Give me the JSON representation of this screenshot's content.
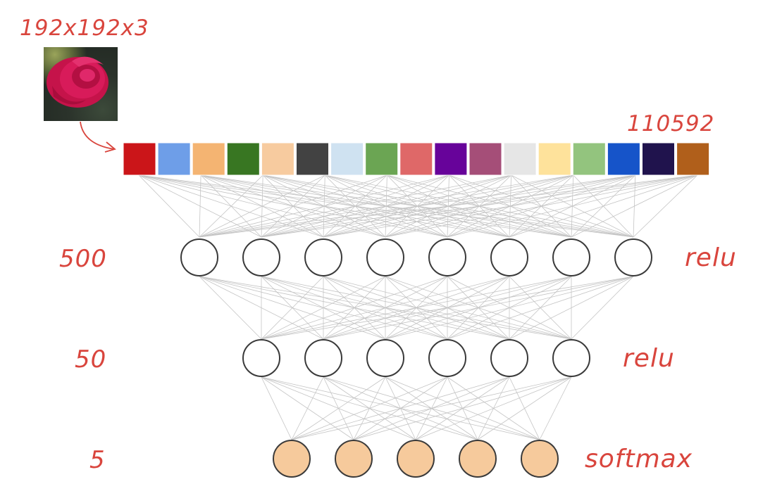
{
  "input": {
    "image_label": "192x192x3",
    "vector_label": "110592",
    "vector_colors": [
      "#cb1519",
      "#6e9ee8",
      "#f4b472",
      "#387622",
      "#f7cb9f",
      "#424242",
      "#cfe2f1",
      "#6ba553",
      "#df6868",
      "#67039a",
      "#a54e78",
      "#e6e6e6",
      "#fee29b",
      "#93c47e",
      "#1654c9",
      "#20134d",
      "#b05f1b"
    ]
  },
  "layers": [
    {
      "size_label": "500",
      "activation": "relu",
      "nodes_drawn": 8,
      "fill": "#ffffff"
    },
    {
      "size_label": "50",
      "activation": "relu",
      "nodes_drawn": 6,
      "fill": "#ffffff"
    },
    {
      "size_label": "5",
      "activation": "softmax",
      "nodes_drawn": 5,
      "fill": "#f6ca9c"
    }
  ],
  "colors": {
    "annotation": "#d9453d",
    "edge": "#c4c4c4",
    "node_stroke": "#3a3a3a"
  }
}
